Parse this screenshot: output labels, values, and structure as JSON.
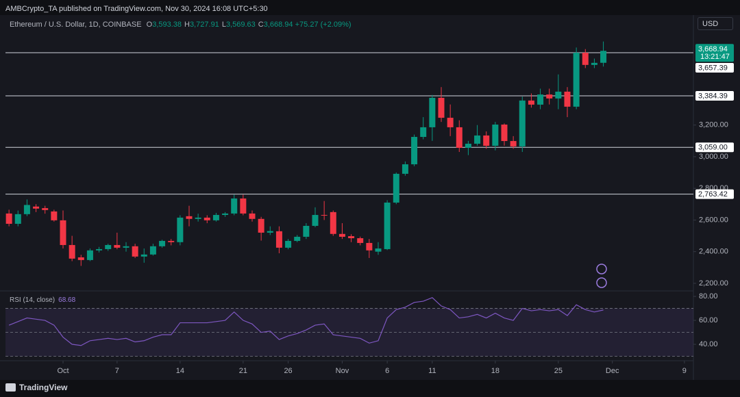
{
  "header": {
    "publisher": "AMBCrypto_TA published on TradingView.com, Nov 30, 2024 16:08 UTC+5:30",
    "currency": "USD",
    "brand": "TradingView"
  },
  "chart_data": [
    {
      "type": "candlestick",
      "title": "Ethereum / U.S. Dollar, 1D, COINBASE",
      "ohlc_legend": [
        {
          "key": "O",
          "value": "3,593.38"
        },
        {
          "key": "H",
          "value": "3,727.91"
        },
        {
          "key": "L",
          "value": "3,569.63"
        },
        {
          "key": "C",
          "value": "3,668.94"
        }
      ],
      "change": "+75.27 (+2.09%)",
      "up_color": "#089981",
      "down_color": "#f23645",
      "x": [
        "2024-09-25",
        "2024-09-26",
        "2024-09-27",
        "2024-09-28",
        "2024-09-29",
        "2024-09-30",
        "2024-10-01",
        "2024-10-02",
        "2024-10-03",
        "2024-10-04",
        "2024-10-05",
        "2024-10-06",
        "2024-10-07",
        "2024-10-08",
        "2024-10-09",
        "2024-10-10",
        "2024-10-11",
        "2024-10-12",
        "2024-10-13",
        "2024-10-14",
        "2024-10-15",
        "2024-10-16",
        "2024-10-17",
        "2024-10-18",
        "2024-10-19",
        "2024-10-20",
        "2024-10-21",
        "2024-10-22",
        "2024-10-23",
        "2024-10-24",
        "2024-10-25",
        "2024-10-26",
        "2024-10-27",
        "2024-10-28",
        "2024-10-29",
        "2024-10-30",
        "2024-10-31",
        "2024-11-01",
        "2024-11-02",
        "2024-11-03",
        "2024-11-04",
        "2024-11-05",
        "2024-11-06",
        "2024-11-07",
        "2024-11-08",
        "2024-11-09",
        "2024-11-10",
        "2024-11-11",
        "2024-11-12",
        "2024-11-13",
        "2024-11-14",
        "2024-11-15",
        "2024-11-16",
        "2024-11-17",
        "2024-11-18",
        "2024-11-19",
        "2024-11-20",
        "2024-11-21",
        "2024-11-22",
        "2024-11-23",
        "2024-11-24",
        "2024-11-25",
        "2024-11-26",
        "2024-11-27",
        "2024-11-28",
        "2024-11-29",
        "2024-11-30"
      ],
      "open": [
        2641,
        2576,
        2637,
        2685,
        2675,
        2654,
        2598,
        2442,
        2364,
        2347,
        2408,
        2416,
        2442,
        2425,
        2434,
        2369,
        2382,
        2434,
        2468,
        2460,
        2624,
        2607,
        2615,
        2598,
        2632,
        2641,
        2736,
        2641,
        2607,
        2520,
        2529,
        2425,
        2468,
        2494,
        2563,
        2632,
        2650,
        2512,
        2498,
        2485,
        2455,
        2400,
        2416,
        2710,
        2892,
        2952,
        3125,
        3186,
        3372,
        3246,
        3186,
        3056,
        3082,
        3134,
        3069,
        3203,
        3099,
        3065,
        3355,
        3329,
        3393,
        3368,
        3411,
        3316,
        3657,
        3580,
        3593.38
      ],
      "high": [
        2665,
        2660,
        2730,
        2700,
        2690,
        2665,
        2660,
        2500,
        2380,
        2420,
        2430,
        2450,
        2520,
        2460,
        2450,
        2420,
        2450,
        2475,
        2480,
        2630,
        2690,
        2640,
        2630,
        2645,
        2650,
        2760,
        2760,
        2660,
        2620,
        2560,
        2560,
        2480,
        2505,
        2580,
        2680,
        2720,
        2660,
        2580,
        2510,
        2495,
        2480,
        2460,
        2725,
        2900,
        2970,
        3140,
        3250,
        3390,
        3440,
        3330,
        3230,
        3100,
        3200,
        3160,
        3220,
        3210,
        3130,
        3380,
        3400,
        3430,
        3430,
        3520,
        3440,
        3690,
        3680,
        3620,
        3727.91
      ],
      "low": [
        2560,
        2560,
        2625,
        2650,
        2640,
        2590,
        2420,
        2340,
        2310,
        2340,
        2395,
        2405,
        2415,
        2400,
        2360,
        2330,
        2375,
        2425,
        2440,
        2440,
        2560,
        2590,
        2580,
        2590,
        2620,
        2630,
        2630,
        2590,
        2470,
        2505,
        2390,
        2415,
        2460,
        2480,
        2555,
        2600,
        2500,
        2480,
        2460,
        2440,
        2360,
        2380,
        2410,
        2700,
        2880,
        2940,
        3110,
        3100,
        3220,
        3130,
        3030,
        3010,
        3070,
        3050,
        3040,
        3070,
        3050,
        3030,
        3310,
        3300,
        3330,
        3300,
        3250,
        3300,
        3560,
        3560,
        3569.63
      ],
      "close": [
        2576,
        2637,
        2695,
        2672,
        2663,
        2598,
        2442,
        2356,
        2347,
        2408,
        2416,
        2442,
        2425,
        2434,
        2369,
        2382,
        2434,
        2468,
        2460,
        2615,
        2607,
        2615,
        2598,
        2632,
        2641,
        2736,
        2641,
        2607,
        2520,
        2530,
        2425,
        2468,
        2494,
        2563,
        2632,
        2628,
        2512,
        2494,
        2485,
        2455,
        2408,
        2420,
        2710,
        2892,
        2952,
        3125,
        3186,
        3372,
        3246,
        3186,
        3056,
        3082,
        3134,
        3069,
        3203,
        3099,
        3065,
        3355,
        3329,
        3393,
        3368,
        3411,
        3316,
        3657,
        3580,
        3593,
        3668.94
      ],
      "xlim": [
        "2024-09-24",
        "2024-12-10"
      ],
      "xticks": [
        {
          "value": "2024-10-01",
          "label": "Oct"
        },
        {
          "value": "2024-10-07",
          "label": "7"
        },
        {
          "value": "2024-10-14",
          "label": "14"
        },
        {
          "value": "2024-10-21",
          "label": "21"
        },
        {
          "value": "2024-10-26",
          "label": "26"
        },
        {
          "value": "2024-11-01",
          "label": "Nov"
        },
        {
          "value": "2024-11-06",
          "label": "6"
        },
        {
          "value": "2024-11-11",
          "label": "11"
        },
        {
          "value": "2024-11-18",
          "label": "18"
        },
        {
          "value": "2024-11-25",
          "label": "25"
        },
        {
          "value": "2024-12-01",
          "label": "Dec"
        },
        {
          "value": "2024-12-09",
          "label": "9"
        }
      ],
      "ylim": [
        2152,
        3895
      ],
      "yticks": [
        {
          "value": 2200,
          "label": "2,200.00"
        },
        {
          "value": 2400,
          "label": "2,400.00"
        },
        {
          "value": 2600,
          "label": "2,600.00"
        },
        {
          "value": 2800,
          "label": "2,800.00"
        },
        {
          "value": 3000,
          "label": "3,000.00"
        },
        {
          "value": 3200,
          "label": "3,200.00"
        }
      ],
      "levels": [
        {
          "value": 3657.39,
          "label": "3,657.39"
        },
        {
          "value": 3384.39,
          "label": "3,384.39"
        },
        {
          "value": 3059.0,
          "label": "3,059.00"
        },
        {
          "value": 2763.42,
          "label": "2,763.42"
        }
      ],
      "last_price": {
        "value": 3668.94,
        "label": "3,668.94",
        "countdown": "13:21:47"
      },
      "grid": false
    },
    {
      "type": "line",
      "title": "RSI (14, close)",
      "color": "#7e57c2",
      "values": [
        56,
        59,
        62,
        61,
        60,
        56,
        46,
        40,
        39,
        43,
        44,
        45,
        44,
        45,
        42,
        43,
        46,
        48,
        48,
        58,
        58,
        58,
        58,
        59,
        60,
        67,
        60,
        57,
        50,
        51,
        44,
        47,
        49,
        52,
        56,
        57,
        48,
        47,
        46,
        45,
        41,
        43,
        62,
        69,
        71,
        75,
        76,
        79,
        72,
        69,
        62,
        63,
        65,
        62,
        66,
        62,
        60,
        70,
        68,
        69,
        68,
        69,
        64,
        73,
        69,
        67,
        68.68
      ],
      "ylim": [
        26.3,
        84.6
      ],
      "yticks": [
        {
          "value": 40,
          "label": "40.00"
        },
        {
          "value": 60,
          "label": "60.00"
        },
        {
          "value": 80,
          "label": "80.00"
        }
      ],
      "levels": [
        30,
        50,
        70
      ]
    }
  ]
}
